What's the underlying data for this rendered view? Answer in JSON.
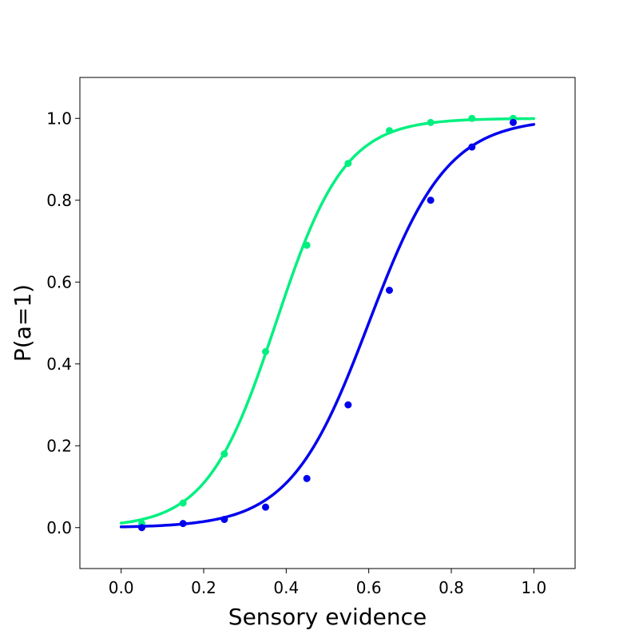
{
  "chart_data": {
    "type": "line",
    "title": "",
    "xlabel": "Sensory evidence",
    "ylabel": "P(a=1)",
    "xlim": [
      -0.1,
      1.1
    ],
    "ylim": [
      -0.1,
      1.1
    ],
    "xticks": [
      "0.0",
      "0.2",
      "0.4",
      "0.6",
      "0.8",
      "1.0"
    ],
    "yticks": [
      "0.0",
      "0.2",
      "0.4",
      "0.6",
      "0.8",
      "1.0"
    ],
    "grid": false,
    "series": [
      {
        "color": "#00f080",
        "fit": {
          "model": "logistic",
          "midpoint": 0.375,
          "slope": 12.0
        },
        "points": {
          "x": [
            0.05,
            0.15,
            0.25,
            0.35,
            0.45,
            0.55,
            0.65,
            0.75,
            0.85,
            0.95
          ],
          "y": [
            0.01,
            0.06,
            0.18,
            0.43,
            0.69,
            0.89,
            0.97,
            0.99,
            1.0,
            1.0
          ]
        }
      },
      {
        "color": "#0000ee",
        "fit": {
          "model": "logistic",
          "midpoint": 0.6,
          "slope": 10.5
        },
        "points": {
          "x": [
            0.05,
            0.15,
            0.25,
            0.35,
            0.45,
            0.55,
            0.65,
            0.75,
            0.85,
            0.95
          ],
          "y": [
            0.0,
            0.01,
            0.02,
            0.05,
            0.12,
            0.3,
            0.58,
            0.8,
            0.93,
            0.99
          ]
        }
      }
    ]
  }
}
